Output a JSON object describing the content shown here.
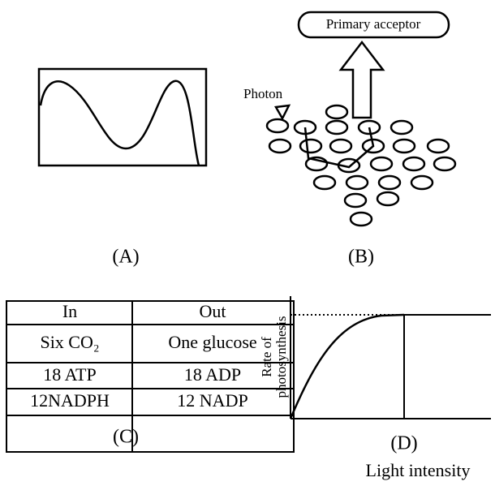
{
  "panel_b": {
    "acceptor": "Primary acceptor",
    "photon": "Photon"
  },
  "labels": [
    "(A)",
    "(B)",
    "(C)",
    "(D)"
  ],
  "table": {
    "header": [
      "In",
      "Out"
    ],
    "rows": [
      [
        "Six CO₂",
        "One glucose"
      ],
      [
        "18 ATP",
        "18 ADP"
      ],
      [
        "12NADPH",
        "12 NADP"
      ]
    ]
  },
  "panel_d": {
    "y_label": [
      "Rate of",
      "photosynthesis"
    ],
    "x_label": "Light intensity"
  }
}
